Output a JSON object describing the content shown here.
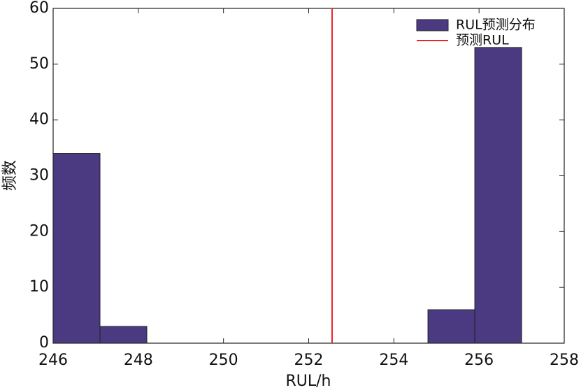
{
  "chart_data": {
    "type": "histogram",
    "xlabel": "RUL/h",
    "ylabel": "频数",
    "bins": [
      246,
      247.1,
      248.2,
      249.3,
      250.4,
      251.5,
      252.6,
      253.7,
      254.8,
      255.9,
      257.0
    ],
    "series": [
      {
        "name": "RUL预测分布",
        "color": "#4b3a82",
        "values": [
          34,
          3,
          0,
          0,
          0,
          0,
          0,
          0,
          6,
          53
        ]
      }
    ],
    "reference_line": {
      "name": "预测RUL",
      "x": 252.55,
      "color": "#e8262a"
    },
    "xlim": [
      246,
      258
    ],
    "xticks": [
      246,
      248,
      250,
      252,
      254,
      256,
      258
    ],
    "ylim": [
      0,
      60
    ],
    "yticks": [
      0,
      10,
      20,
      30,
      40,
      50,
      60
    ],
    "grid": false,
    "legend": "upper right"
  }
}
